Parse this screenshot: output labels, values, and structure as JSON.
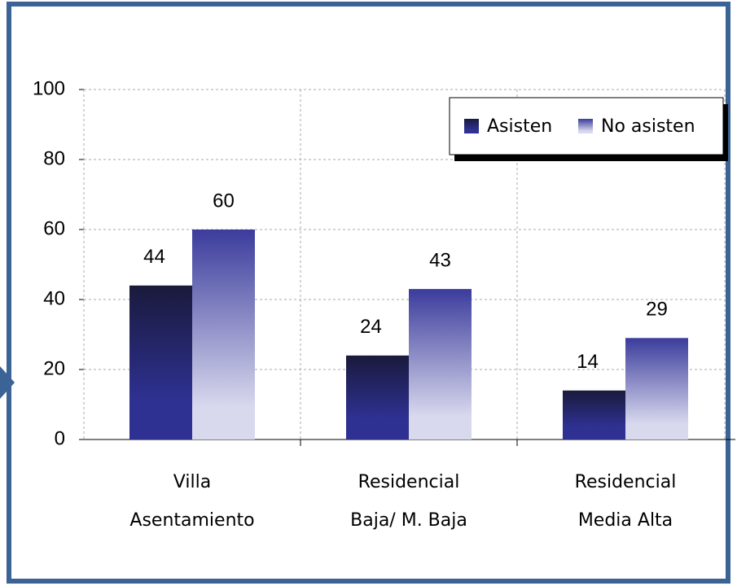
{
  "chart_data": {
    "type": "bar",
    "categories": [
      [
        "Villa",
        "Asentamiento"
      ],
      [
        "Residencial",
        "Baja/ M. Baja"
      ],
      [
        "Residencial",
        "Media Alta"
      ]
    ],
    "series": [
      {
        "name": "Asisten",
        "color": [
          "#1a1a3c",
          "#2e3192"
        ],
        "values": [
          44,
          24,
          14
        ]
      },
      {
        "name": "No asisten",
        "color": [
          "#3b3c9c",
          "#d9d9ee"
        ],
        "values": [
          60,
          43,
          29
        ]
      }
    ],
    "ylim": [
      0,
      100
    ],
    "yticks": [
      0,
      20,
      40,
      60,
      80,
      100
    ],
    "grid": true,
    "legend": "top-right"
  }
}
